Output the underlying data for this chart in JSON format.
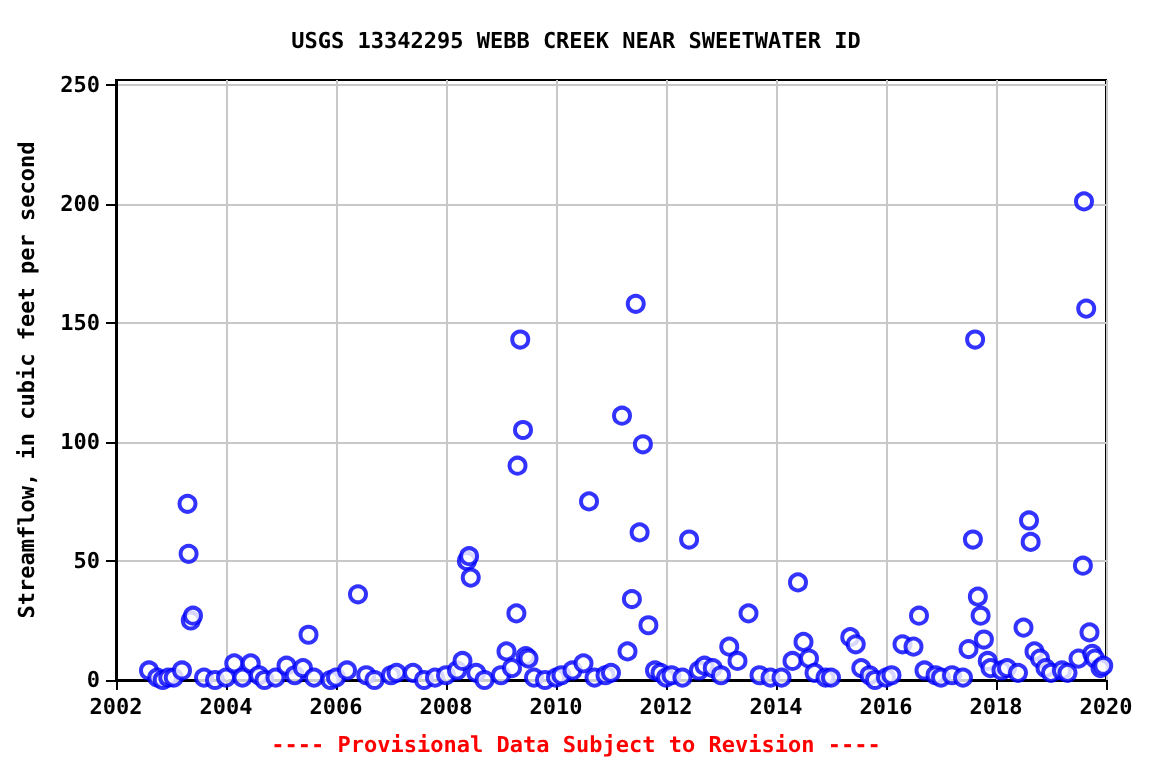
{
  "chart_data": {
    "type": "scatter",
    "title": "USGS 13342295 WEBB CREEK NEAR SWEETWATER ID",
    "ylabel": "Streamflow, in cubic feet per second",
    "annotations": [
      "---- Provisional Data Subject to Revision ----"
    ],
    "x": [
      2002.6,
      2002.75,
      2002.85,
      2002.95,
      2003.05,
      2003.2,
      2003.3,
      2003.32,
      2003.36,
      2003.4,
      2003.6,
      2003.8,
      2004.0,
      2004.15,
      2004.3,
      2004.45,
      2004.6,
      2004.7,
      2004.9,
      2005.1,
      2005.25,
      2005.4,
      2005.5,
      2005.6,
      2005.9,
      2006.0,
      2006.2,
      2006.4,
      2006.55,
      2006.7,
      2007.0,
      2007.1,
      2007.4,
      2007.6,
      2007.8,
      2008.0,
      2008.2,
      2008.3,
      2008.38,
      2008.42,
      2008.45,
      2008.55,
      2008.7,
      2009.0,
      2009.1,
      2009.2,
      2009.28,
      2009.3,
      2009.35,
      2009.4,
      2009.45,
      2009.5,
      2009.6,
      2009.8,
      2010.0,
      2010.1,
      2010.3,
      2010.5,
      2010.6,
      2010.7,
      2010.9,
      2011.0,
      2011.2,
      2011.3,
      2011.38,
      2011.45,
      2011.52,
      2011.58,
      2011.68,
      2011.8,
      2011.9,
      2012.0,
      2012.1,
      2012.3,
      2012.42,
      2012.6,
      2012.7,
      2012.85,
      2013.0,
      2013.15,
      2013.3,
      2013.5,
      2013.7,
      2013.9,
      2014.1,
      2014.3,
      2014.4,
      2014.5,
      2014.6,
      2014.7,
      2014.9,
      2015.0,
      2015.35,
      2015.45,
      2015.55,
      2015.7,
      2015.8,
      2016.0,
      2016.1,
      2016.3,
      2016.5,
      2016.6,
      2016.7,
      2016.9,
      2017.0,
      2017.2,
      2017.4,
      2017.5,
      2017.58,
      2017.62,
      2017.67,
      2017.72,
      2017.78,
      2017.85,
      2017.9,
      2018.1,
      2018.2,
      2018.4,
      2018.5,
      2018.6,
      2018.63,
      2018.7,
      2018.8,
      2018.9,
      2019.0,
      2019.2,
      2019.3,
      2019.5,
      2019.58,
      2019.6,
      2019.64,
      2019.7,
      2019.75,
      2019.8,
      2019.9,
      2019.95
    ],
    "values": [
      4,
      1,
      0,
      1,
      1,
      4,
      74,
      53,
      25,
      27,
      1,
      0,
      1,
      7,
      1,
      7,
      2,
      0,
      1,
      6,
      2,
      5,
      19,
      1,
      0,
      1,
      4,
      36,
      2,
      0,
      2,
      3,
      3,
      0,
      1,
      2,
      4,
      8,
      50,
      52,
      43,
      3,
      0,
      2,
      12,
      5,
      28,
      90,
      143,
      105,
      10,
      9,
      1,
      0,
      1,
      2,
      4,
      7,
      75,
      1,
      2,
      3,
      111,
      12,
      34,
      158,
      62,
      99,
      23,
      4,
      3,
      1,
      2,
      1,
      59,
      4,
      6,
      5,
      2,
      14,
      8,
      28,
      2,
      1,
      1,
      8,
      41,
      16,
      9,
      3,
      1,
      1,
      18,
      15,
      5,
      2,
      0,
      1,
      2,
      15,
      14,
      27,
      4,
      2,
      1,
      2,
      1,
      13,
      59,
      143,
      35,
      27,
      17,
      8,
      5,
      4,
      5,
      3,
      22,
      67,
      58,
      12,
      9,
      5,
      3,
      4,
      3,
      9,
      48,
      201,
      156,
      20,
      11,
      9,
      5,
      6
    ],
    "color": "#0000ff",
    "marker": "circle",
    "grid": true,
    "xlim": [
      2002,
      2020
    ],
    "xticks": [
      2002,
      2004,
      2006,
      2008,
      2010,
      2012,
      2014,
      2016,
      2018,
      2020
    ],
    "ylim": [
      0,
      252
    ],
    "yticks": [
      0,
      50,
      100,
      150,
      200,
      250
    ]
  }
}
